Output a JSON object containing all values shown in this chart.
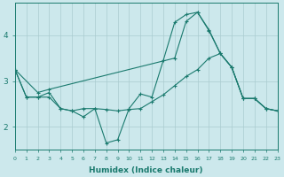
{
  "xlabel": "Humidex (Indice chaleur)",
  "bg_color": "#cce8ec",
  "line_color": "#1a7a6e",
  "grid_color": "#aaccd0",
  "xlim": [
    0,
    23
  ],
  "ylim": [
    1.5,
    4.7
  ],
  "yticks": [
    2,
    3,
    4
  ],
  "xticks": [
    0,
    1,
    2,
    3,
    4,
    5,
    6,
    7,
    8,
    9,
    10,
    11,
    12,
    13,
    14,
    15,
    16,
    17,
    18,
    19,
    20,
    21,
    22,
    23
  ],
  "line1_x": [
    0,
    2,
    3,
    14,
    15,
    16,
    17,
    18,
    19,
    20,
    21,
    22,
    23
  ],
  "line1_y": [
    3.25,
    2.75,
    2.82,
    3.5,
    4.3,
    4.5,
    4.1,
    3.6,
    3.3,
    2.62,
    2.62,
    2.4,
    2.35
  ],
  "line2_x": [
    0,
    1,
    2,
    3,
    4,
    5,
    6,
    7,
    8,
    9,
    10,
    11,
    12,
    13,
    14,
    15,
    16,
    17,
    18,
    19,
    20,
    21,
    22,
    23
  ],
  "line2_y": [
    3.25,
    2.65,
    2.65,
    2.75,
    2.4,
    2.35,
    2.22,
    2.4,
    1.65,
    1.72,
    2.4,
    2.72,
    2.65,
    3.45,
    4.28,
    4.45,
    4.5,
    4.12,
    3.6,
    3.3,
    2.62,
    2.62,
    2.4,
    2.35
  ],
  "line3_x": [
    0,
    1,
    2,
    3,
    4,
    5,
    6,
    7,
    8,
    9,
    10,
    11,
    12,
    13,
    14,
    15,
    16,
    17,
    18,
    19,
    20,
    21,
    22,
    23
  ],
  "line3_y": [
    3.25,
    2.65,
    2.65,
    2.65,
    2.4,
    2.35,
    2.4,
    2.4,
    2.38,
    2.35,
    2.38,
    2.4,
    2.55,
    2.7,
    2.9,
    3.1,
    3.25,
    3.5,
    3.6,
    3.3,
    2.62,
    2.62,
    2.4,
    2.35
  ]
}
